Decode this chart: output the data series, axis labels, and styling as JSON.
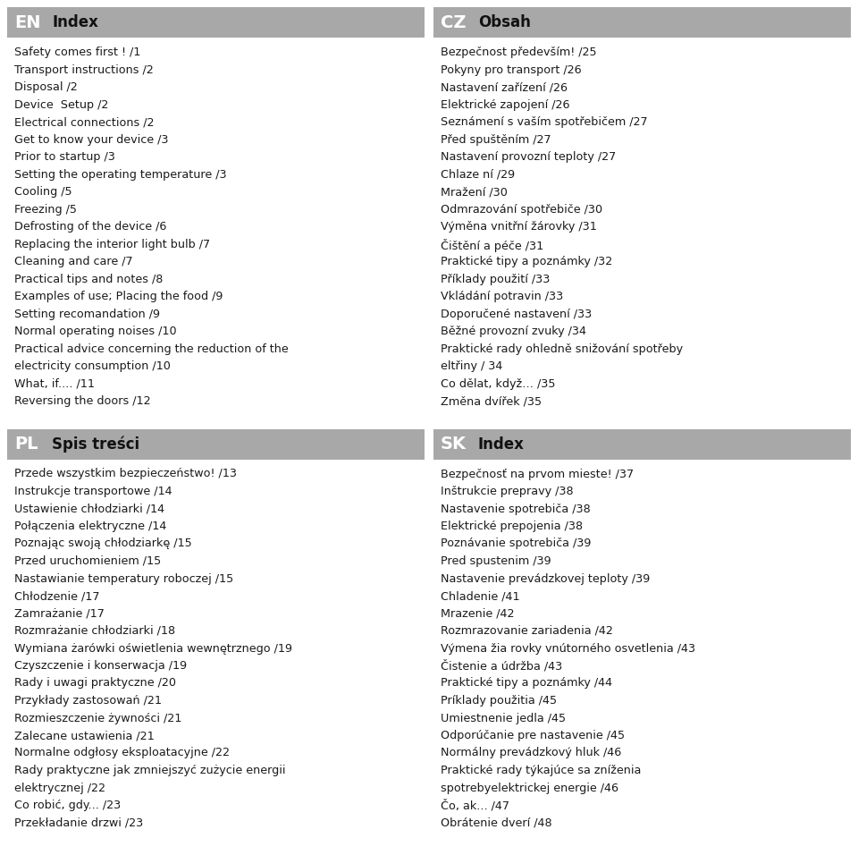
{
  "background_color": "#ffffff",
  "header_bg_color": "#a8a8a8",
  "header_text_color": "#ffffff",
  "body_text_color": "#1a1a1a",
  "fig_width": 9.6,
  "fig_height": 9.56,
  "dpi": 100,
  "sections": [
    {
      "lang_code": "EN",
      "title": "Index",
      "col": 0,
      "row": 0,
      "lines": [
        "Safety comes first ! /1",
        "Transport instructions /2",
        "Disposal /2",
        "Device  Setup /2",
        "Electrical connections /2",
        "Get to know your device /3",
        "Prior to startup /3",
        "Setting the operating temperature /3",
        "Cooling /5",
        "Freezing /5",
        "Defrosting of the device /6",
        "Replacing the interior light bulb /7",
        "Cleaning and care /7",
        "Practical tips and notes /8",
        "Examples of use; Placing the food /9",
        "Setting recomandation /9",
        "Normal operating noises /10",
        "Practical advice concerning the reduction of the",
        "electricity consumption /10",
        "What, if.... /11",
        "Reversing the doors /12"
      ]
    },
    {
      "lang_code": "CZ",
      "title": "Obsah",
      "col": 1,
      "row": 0,
      "lines": [
        "Bezpečnost především! /25",
        "Pokyny pro transport /26",
        "Nastavení zařízení /26",
        "Elektrické zapojení /26",
        "Seznámení s vaším spotřebičem /27",
        "Před spuštěním /27",
        "Nastavení provozní teploty /27",
        "Chlaze ní /29",
        "Mražení /30",
        "Odmrazování spotřebiče /30",
        "Výměna vnitřní žárovky /31",
        "Čištění a péče /31",
        "Praktické tipy a poznámky /32",
        "Příklady použití /33",
        "Vkládání potravin /33",
        "Doporučené nastavení /33",
        "Běžné provozní zvuky /34",
        "Praktické rady ohledně snižování spotřeby",
        "eltřiny / 34",
        "Co dělat, když… /35",
        "Změna dvířek /35"
      ]
    },
    {
      "lang_code": "PL",
      "title": "Spis treści",
      "col": 0,
      "row": 1,
      "lines": [
        "Przede wszystkim bezpieczeństwo! /13",
        "Instrukcje transportowe /14",
        "Ustawienie chłodziarki /14",
        "Połączenia elektryczne /14",
        "Poznając swoją chłodziarkę /15",
        "Przed uruchomieniem /15",
        "Nastawianie temperatury roboczej /15",
        "Chłodzenie /17",
        "Zamrażanie /17",
        "Rozmrażanie chłodziarki /18",
        "Wymiana żarówki oświetlenia wewnętrznego /19",
        "Czyszczenie i konserwacja /19",
        "Rady i uwagi praktyczne /20",
        "Przykłady zastosowań /21",
        "Rozmieszczenie żywności /21",
        "Zalecane ustawienia /21",
        "Normalne odgłosy eksploatacyjne /22",
        "Rady praktyczne jak zmniejszyć zużycie energii",
        "elektrycznej /22",
        "Co robić, gdy... /23",
        "Przekładanie drzwi /23"
      ]
    },
    {
      "lang_code": "SK",
      "title": "Index",
      "col": 1,
      "row": 1,
      "lines": [
        "Bezpečnosť na prvom mieste! /37",
        "Inštrukcie prepravy /38",
        "Nastavenie spotrebiča /38",
        "Elektrické prepojenia /38",
        "Poznávanie spotrebiča /39",
        "Pred spustenim /39",
        "Nastavenie prevádzkovej teploty /39",
        "Chladenie /41",
        "Mrazenie /42",
        "Rozmrazovanie zariadenia /42",
        "Výmena žia rovky vnútorného osvetlenia /43",
        "Čistenie a údržba /43",
        "Praktické tipy a poznámky /44",
        "Príklady použitia /45",
        "Umiestnenie jedla /45",
        "Odporúčanie pre nastavenie /45",
        "Normálny prevádzkový hluk /46",
        "Praktické rady týkajúce sa zníženia",
        "spotrebyelektrickej energie /46",
        "Čo, ak... /47",
        "Obrátenie dverí /48"
      ]
    }
  ]
}
